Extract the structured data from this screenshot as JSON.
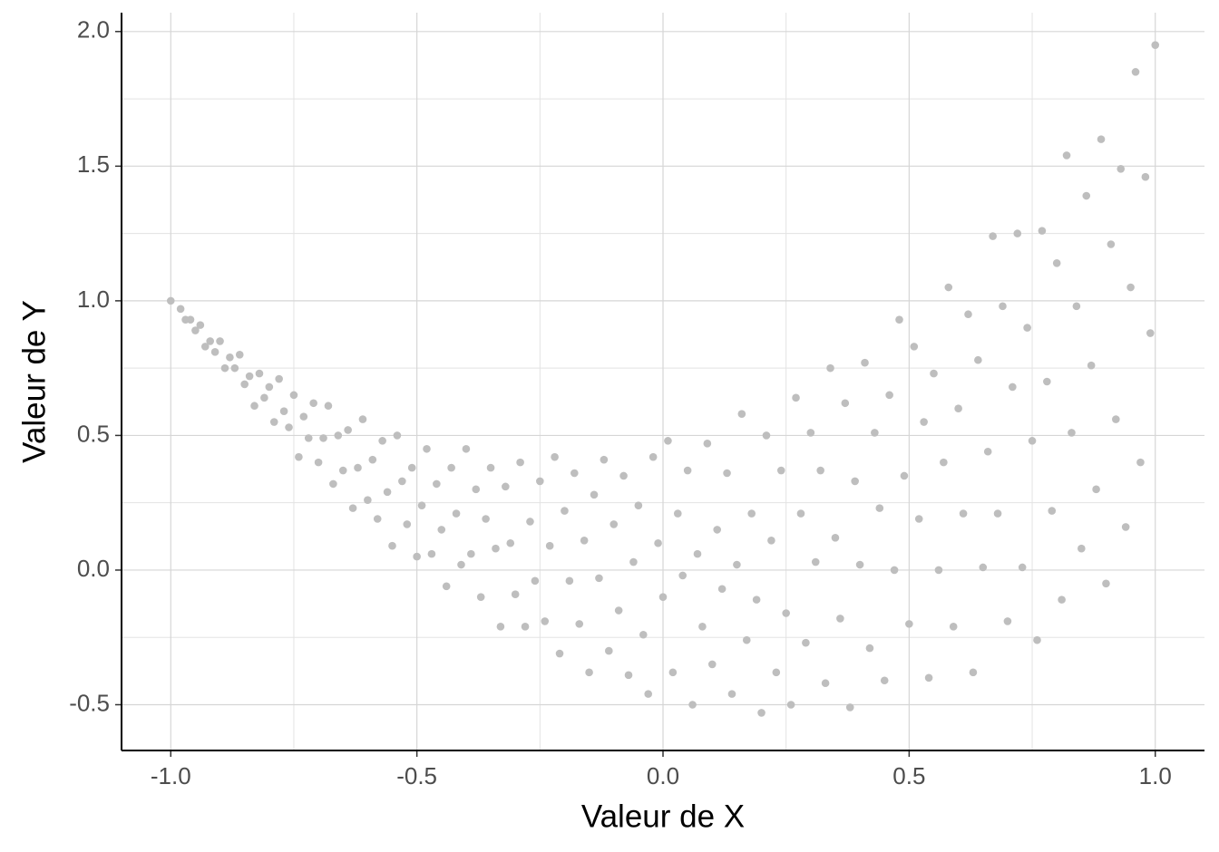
{
  "chart_data": {
    "type": "scatter",
    "x_label": "Valeur de X",
    "y_label": "Valeur de Y",
    "color": "#bebebe",
    "grid": true,
    "xlim": [
      -1.1,
      1.1
    ],
    "ylim": [
      -0.67,
      2.07
    ],
    "xticks": [
      {
        "value": -1,
        "label": "-1.0"
      },
      -0.5,
      {
        "value": 0,
        "label": "0.0"
      },
      0.5,
      {
        "value": 1,
        "label": "1.0"
      }
    ],
    "yticks": [
      -0.5,
      {
        "value": 0,
        "label": "0.0"
      },
      0.5,
      {
        "value": 1,
        "label": "1.0"
      },
      1.5,
      {
        "value": 2,
        "label": "2.0"
      }
    ],
    "x_minor_ticks": [
      -0.75,
      -0.25,
      0.25,
      0.75
    ],
    "y_minor_ticks": [
      -0.25,
      0.25,
      0.75,
      1.25,
      1.75
    ],
    "x": [
      -1.0,
      -0.98,
      -0.97,
      -0.96,
      -0.95,
      -0.94,
      -0.93,
      -0.92,
      -0.91,
      -0.9,
      -0.89,
      -0.88,
      -0.87,
      -0.86,
      -0.85,
      -0.84,
      -0.83,
      -0.82,
      -0.81,
      -0.8,
      -0.79,
      -0.78,
      -0.77,
      -0.76,
      -0.75,
      -0.74,
      -0.73,
      -0.72,
      -0.71,
      -0.7,
      -0.69,
      -0.68,
      -0.67,
      -0.66,
      -0.65,
      -0.64,
      -0.63,
      -0.62,
      -0.61,
      -0.6,
      -0.59,
      -0.58,
      -0.57,
      -0.56,
      -0.55,
      -0.54,
      -0.53,
      -0.52,
      -0.51,
      -0.5,
      -0.49,
      -0.48,
      -0.47,
      -0.46,
      -0.45,
      -0.44,
      -0.43,
      -0.42,
      -0.41,
      -0.4,
      -0.39,
      -0.38,
      -0.37,
      -0.36,
      -0.35,
      -0.34,
      -0.33,
      -0.32,
      -0.31,
      -0.3,
      -0.29,
      -0.28,
      -0.27,
      -0.26,
      -0.25,
      -0.24,
      -0.23,
      -0.22,
      -0.21,
      -0.2,
      -0.19,
      -0.18,
      -0.17,
      -0.16,
      -0.15,
      -0.14,
      -0.13,
      -0.12,
      -0.11,
      -0.1,
      -0.09,
      -0.08,
      -0.07,
      -0.06,
      -0.05,
      -0.04,
      -0.03,
      -0.02,
      -0.01,
      0.0,
      0.01,
      0.02,
      0.03,
      0.04,
      0.05,
      0.06,
      0.07,
      0.08,
      0.09,
      0.1,
      0.11,
      0.12,
      0.13,
      0.14,
      0.15,
      0.16,
      0.17,
      0.18,
      0.19,
      0.2,
      0.21,
      0.22,
      0.23,
      0.24,
      0.25,
      0.26,
      0.27,
      0.28,
      0.29,
      0.3,
      0.31,
      0.32,
      0.33,
      0.34,
      0.35,
      0.36,
      0.37,
      0.38,
      0.39,
      0.4,
      0.41,
      0.42,
      0.43,
      0.44,
      0.45,
      0.46,
      0.47,
      0.48,
      0.49,
      0.5,
      0.51,
      0.52,
      0.53,
      0.54,
      0.55,
      0.56,
      0.57,
      0.58,
      0.59,
      0.6,
      0.61,
      0.62,
      0.63,
      0.64,
      0.65,
      0.66,
      0.67,
      0.68,
      0.69,
      0.7,
      0.71,
      0.72,
      0.73,
      0.74,
      0.75,
      0.76,
      0.77,
      0.78,
      0.79,
      0.8,
      0.81,
      0.82,
      0.83,
      0.84,
      0.85,
      0.86,
      0.87,
      0.88,
      0.89,
      0.9,
      0.91,
      0.92,
      0.93,
      0.94,
      0.95,
      0.96,
      0.97,
      0.98,
      0.99,
      1.0
    ],
    "y": [
      1.0,
      0.97,
      0.93,
      0.93,
      0.89,
      0.91,
      0.83,
      0.85,
      0.81,
      0.85,
      0.75,
      0.79,
      0.75,
      0.8,
      0.69,
      0.72,
      0.61,
      0.73,
      0.64,
      0.68,
      0.55,
      0.71,
      0.59,
      0.53,
      0.65,
      0.42,
      0.57,
      0.49,
      0.62,
      0.4,
      0.49,
      0.61,
      0.32,
      0.5,
      0.37,
      0.52,
      0.23,
      0.38,
      0.56,
      0.26,
      0.41,
      0.19,
      0.48,
      0.29,
      0.09,
      0.5,
      0.33,
      0.17,
      0.38,
      0.05,
      0.24,
      0.45,
      0.06,
      0.32,
      0.15,
      -0.06,
      0.38,
      0.21,
      0.02,
      0.45,
      0.06,
      0.3,
      -0.1,
      0.19,
      0.38,
      0.08,
      -0.21,
      0.31,
      0.1,
      -0.09,
      0.4,
      -0.21,
      0.18,
      -0.04,
      0.33,
      -0.19,
      0.09,
      0.42,
      -0.31,
      0.22,
      -0.04,
      0.36,
      -0.2,
      0.11,
      -0.38,
      0.28,
      -0.03,
      0.41,
      -0.3,
      0.17,
      -0.15,
      0.35,
      -0.39,
      0.03,
      0.24,
      -0.24,
      -0.46,
      0.42,
      0.1,
      -0.1,
      0.48,
      -0.38,
      0.21,
      -0.02,
      0.37,
      -0.5,
      0.06,
      -0.21,
      0.47,
      -0.35,
      0.15,
      -0.07,
      0.36,
      -0.46,
      0.02,
      0.58,
      -0.26,
      0.21,
      -0.11,
      -0.53,
      0.5,
      0.11,
      -0.38,
      0.37,
      -0.16,
      -0.5,
      0.64,
      0.21,
      -0.27,
      0.51,
      0.03,
      0.37,
      -0.42,
      0.75,
      0.12,
      -0.18,
      0.62,
      -0.51,
      0.33,
      0.02,
      0.77,
      -0.29,
      0.51,
      0.23,
      -0.41,
      0.65,
      0.0,
      0.93,
      0.35,
      -0.2,
      0.83,
      0.19,
      0.55,
      -0.4,
      0.73,
      0.0,
      0.4,
      1.05,
      -0.21,
      0.6,
      0.21,
      0.95,
      -0.38,
      0.78,
      0.01,
      0.44,
      1.24,
      0.21,
      0.98,
      -0.19,
      0.68,
      1.25,
      0.01,
      0.9,
      0.48,
      -0.26,
      1.26,
      0.7,
      0.22,
      1.14,
      -0.11,
      1.54,
      0.51,
      0.98,
      0.08,
      1.39,
      0.76,
      0.3,
      1.6,
      -0.05,
      1.21,
      0.56,
      1.49,
      0.16,
      1.05,
      1.85,
      0.4,
      1.46,
      0.88,
      1.95
    ]
  }
}
